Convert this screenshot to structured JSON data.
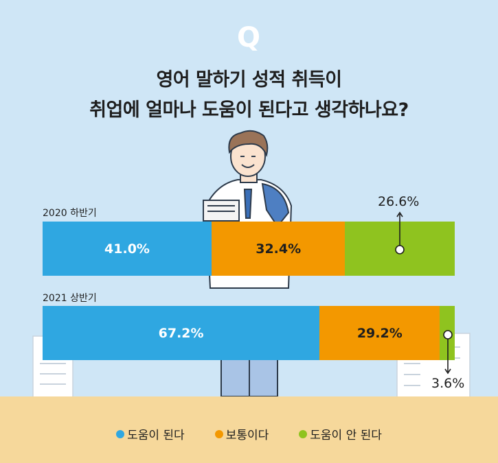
{
  "header": {
    "mark": "Q",
    "title_line1": "영어 말하기 성적 취득이",
    "title_line2": "취업에 얼마나 도움이 된다고 생각하나요?"
  },
  "colors": {
    "background": "#cfe6f6",
    "helpful": "#2fa7e1",
    "neutral": "#f39800",
    "not_helpful": "#8fc31f",
    "ground": "#f6d89b"
  },
  "chart_data": {
    "type": "bar",
    "orientation": "horizontal",
    "stacked": true,
    "unit": "%",
    "categories": [
      "2020 하반기",
      "2021 상반기"
    ],
    "series": [
      {
        "name": "도움이 된다",
        "values": [
          41.0,
          67.2
        ],
        "labels": [
          "41.0%",
          "67.2%"
        ]
      },
      {
        "name": "보통이다",
        "values": [
          32.4,
          29.2
        ],
        "labels": [
          "32.4%",
          "29.2%"
        ]
      },
      {
        "name": "도움이 안 된다",
        "values": [
          26.6,
          3.6
        ],
        "labels": [
          "26.6%",
          "3.6%"
        ]
      }
    ],
    "legend_position": "bottom"
  }
}
